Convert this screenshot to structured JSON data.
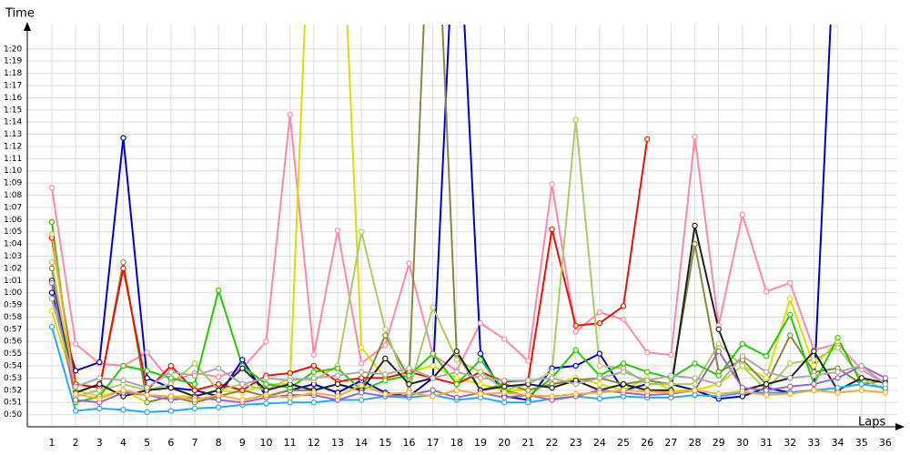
{
  "chart_data": {
    "type": "line",
    "y_label": "Time",
    "x_label": "Laps",
    "x": [
      1,
      2,
      3,
      4,
      5,
      6,
      7,
      8,
      9,
      10,
      11,
      12,
      13,
      14,
      15,
      16,
      17,
      18,
      19,
      20,
      21,
      22,
      23,
      24,
      25,
      26,
      27,
      28,
      29,
      30,
      31,
      32,
      33,
      34,
      35,
      36
    ],
    "xlim": [
      0,
      36.5
    ],
    "xticks": [
      1,
      2,
      3,
      4,
      5,
      6,
      7,
      8,
      9,
      10,
      11,
      12,
      13,
      14,
      15,
      16,
      17,
      18,
      19,
      20,
      21,
      22,
      23,
      24,
      25,
      26,
      27,
      28,
      29,
      30,
      31,
      32,
      33,
      34,
      35,
      36
    ],
    "ylim": [
      49,
      82
    ],
    "yticks": [
      {
        "value": 50,
        "label": "0:50"
      },
      {
        "value": 51,
        "label": "0:51"
      },
      {
        "value": 52,
        "label": "0:52"
      },
      {
        "value": 53,
        "label": "0:53"
      },
      {
        "value": 54,
        "label": "0:54"
      },
      {
        "value": 55,
        "label": "0:55"
      },
      {
        "value": 56,
        "label": "0:56"
      },
      {
        "value": 57,
        "label": "0:57"
      },
      {
        "value": 58,
        "label": "0:58"
      },
      {
        "value": 59,
        "label": "0:59"
      },
      {
        "value": 60,
        "label": "1:00"
      },
      {
        "value": 61,
        "label": "1:01"
      },
      {
        "value": 62,
        "label": "1:02"
      },
      {
        "value": 63,
        "label": "1:03"
      },
      {
        "value": 64,
        "label": "1:04"
      },
      {
        "value": 65,
        "label": "1:05"
      },
      {
        "value": 66,
        "label": "1:06"
      },
      {
        "value": 67,
        "label": "1:07"
      },
      {
        "value": 68,
        "label": "1:08"
      },
      {
        "value": 69,
        "label": "1:09"
      },
      {
        "value": 70,
        "label": "1:10"
      },
      {
        "value": 71,
        "label": "1:11"
      },
      {
        "value": 72,
        "label": "1:12"
      },
      {
        "value": 73,
        "label": "1:13"
      },
      {
        "value": 74,
        "label": "1:14"
      },
      {
        "value": 75,
        "label": "1:15"
      },
      {
        "value": 76,
        "label": "1:16"
      },
      {
        "value": 77,
        "label": "1:17"
      },
      {
        "value": 78,
        "label": "1:18"
      },
      {
        "value": 79,
        "label": "1:19"
      },
      {
        "value": 80,
        "label": "1:20"
      }
    ],
    "grid": true,
    "series": [
      {
        "color": "#ff88aa",
        "values": [
          68.6,
          55.8,
          54.2,
          54.0,
          55.1,
          52.7,
          53.4,
          53.1,
          53.8,
          56,
          74.6,
          54.9,
          65.1,
          54.2,
          55.7,
          62.4,
          54.9,
          53.6,
          57.5,
          56.2,
          54.4,
          68.9,
          56.8,
          58.4,
          57.8,
          55.1,
          54.9,
          72.8,
          57.3,
          66.4,
          60.1,
          60.8,
          55.3,
          55.8,
          53.7,
          52.5
        ]
      },
      {
        "color": "#0000cc",
        "values": [
          60,
          53.6,
          54.3,
          72.7,
          53,
          52.2,
          52,
          51.5,
          54.5,
          51.5,
          52,
          52.5,
          51.8,
          52.8,
          51.8,
          51.5,
          53,
          95,
          55,
          51.5,
          51.2,
          53.8,
          54,
          55,
          52,
          52.5,
          52.5,
          52,
          51.3,
          51.5,
          52.2,
          51.8,
          52,
          95,
          null,
          null
        ]
      },
      {
        "color": "#dddd00",
        "values": [
          58.5,
          52,
          51.5,
          52,
          51,
          51.5,
          51.5,
          52,
          51.8,
          52.5,
          52.5,
          100,
          100,
          55.5,
          53,
          53.5,
          54,
          53,
          52.5,
          52,
          52,
          52.5,
          53,
          52.5,
          52,
          53,
          52,
          52,
          52.5,
          54,
          53,
          59.5,
          54,
          56,
          null,
          null
        ]
      },
      {
        "color": "#888844",
        "values": [
          62,
          51.5,
          52,
          62.5,
          51,
          51.5,
          51,
          51.5,
          52,
          51.5,
          52,
          52,
          52.5,
          52,
          56.5,
          53,
          100,
          55,
          52,
          52.5,
          52,
          52.5,
          52.8,
          53,
          52.5,
          52.8,
          52.5,
          64,
          53.5,
          54.5,
          52.5,
          56.5,
          53.5,
          53.8,
          52.5,
          52.8
        ]
      },
      {
        "color": "#ee1100",
        "values": [
          64.5,
          52.5,
          52.2,
          62,
          52,
          54,
          52,
          52.5,
          52,
          53.2,
          53.4,
          54,
          52.7,
          53,
          53,
          53.5,
          53,
          52.5,
          53.5,
          52.7,
          52.8,
          65.2,
          57.3,
          57.5,
          58.9,
          72.6,
          null,
          null,
          null,
          null,
          null,
          null,
          null,
          null,
          null,
          null
        ]
      },
      {
        "color": "#aacc66",
        "values": [
          62.5,
          51.5,
          52,
          52.5,
          52,
          52.5,
          54.2,
          52,
          52.5,
          52,
          53,
          52.8,
          54,
          65,
          57,
          52,
          58.8,
          54.5,
          53.5,
          52,
          52.5,
          53.5,
          74.2,
          54,
          53.8,
          52.5,
          52.5,
          52.5,
          55.8,
          54,
          52,
          54.2,
          54.5,
          55.5,
          53,
          52
        ]
      },
      {
        "color": "#22cc00",
        "values": [
          65.8,
          51,
          51.5,
          54,
          53.6,
          53,
          52.5,
          60.2,
          54,
          52.5,
          52.2,
          53.5,
          53.8,
          52,
          52.8,
          53.2,
          55,
          52.5,
          54.5,
          52,
          51.5,
          53,
          55.3,
          53.2,
          54.2,
          53.5,
          53,
          54.2,
          53.2,
          55.8,
          54.8,
          58.2,
          52.5,
          56.3,
          52.5,
          52.2
        ]
      },
      {
        "color": "#222222",
        "values": [
          61,
          51.8,
          52.5,
          51.5,
          52,
          52.2,
          51.5,
          52,
          53.8,
          52,
          52.5,
          52,
          52.5,
          52,
          54.6,
          52.5,
          53,
          55.2,
          52,
          52.3,
          52.5,
          52.2,
          52.8,
          52,
          52.5,
          52,
          52,
          65.5,
          57,
          52,
          52.5,
          53,
          55.2,
          52,
          53,
          52.6
        ]
      },
      {
        "color": "#22aaff",
        "values": [
          57.2,
          50.3,
          50.5,
          50.4,
          50.2,
          50.3,
          50.5,
          50.6,
          50.8,
          50.9,
          51,
          51,
          51.2,
          51.2,
          51.5,
          51.4,
          51.6,
          51.2,
          51.4,
          51,
          51,
          51.3,
          51.5,
          51.3,
          51.5,
          51.4,
          51.4,
          51.6,
          51.5,
          51.8,
          51.8,
          51.8,
          52,
          52.2,
          52.5,
          52.2
        ]
      },
      {
        "color": "#9966cc",
        "values": [
          60.8,
          51.2,
          51,
          51.8,
          51.6,
          51.2,
          51.4,
          51.2,
          51,
          51.4,
          51.6,
          51.6,
          51.2,
          51.8,
          51.5,
          51.6,
          52,
          51.4,
          51.8,
          51.4,
          51.6,
          51.2,
          51.5,
          52,
          51.8,
          51.6,
          51.7,
          52,
          55.2,
          52.2,
          52,
          52.3,
          52.5,
          53,
          54,
          53
        ]
      },
      {
        "color": "#aaaaaa",
        "values": [
          59.5,
          52.3,
          53,
          52.8,
          52.2,
          53.5,
          53.2,
          53.8,
          52.5,
          53,
          52.8,
          53,
          53.2,
          53.5,
          53.3,
          53.8,
          53,
          53.5,
          53,
          52.8,
          52.8,
          53,
          52.5,
          53,
          53.5,
          52.8,
          53.2,
          53,
          52.5,
          54.8,
          53.5,
          53,
          53.2,
          53.5,
          54,
          52.5
        ]
      },
      {
        "color": "#ffaa33",
        "values": [
          64.8,
          51.7,
          51.3,
          52,
          51.6,
          51.5,
          51.2,
          51.6,
          51.2,
          51.6,
          51.4,
          51.8,
          51.5,
          52.4,
          51.7,
          51.8,
          51.5,
          52,
          51.7,
          51.8,
          51.6,
          51.5,
          51.7,
          51.8,
          52,
          51.9,
          51.8,
          52,
          51.7,
          51.9,
          51.6,
          51.7,
          52,
          51.8,
          52,
          51.8
        ]
      }
    ]
  }
}
